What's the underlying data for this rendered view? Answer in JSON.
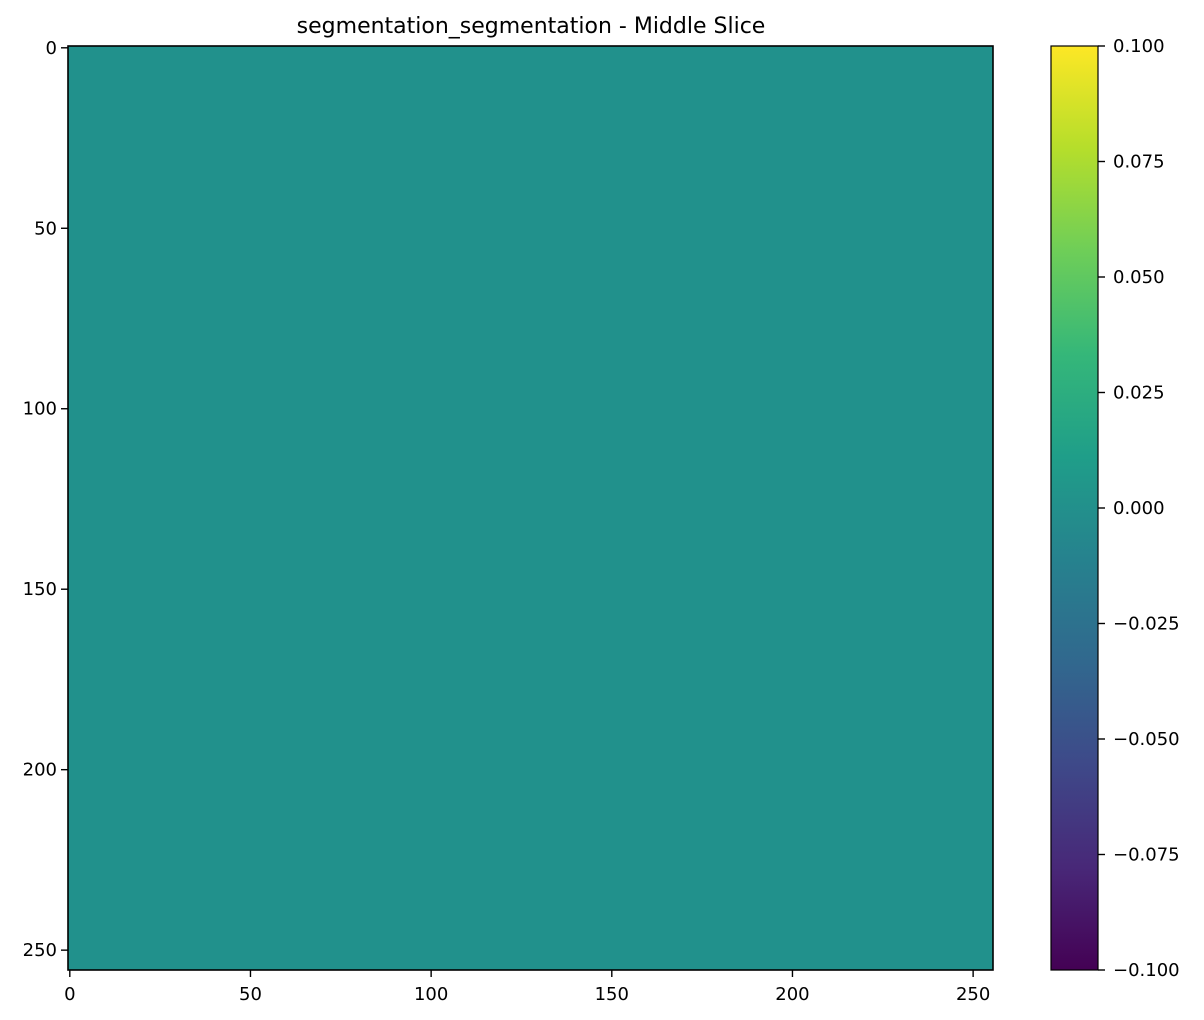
{
  "chart_data": {
    "type": "heatmap",
    "title": "segmentation_segmentation - Middle Slice",
    "xlabel": "",
    "ylabel": "",
    "x_ticks": [
      "0",
      "50",
      "100",
      "150",
      "200",
      "250"
    ],
    "y_ticks": [
      "0",
      "50",
      "100",
      "150",
      "200",
      "250"
    ],
    "x_tick_values": [
      0,
      50,
      100,
      150,
      200,
      250
    ],
    "y_tick_values": [
      0,
      50,
      100,
      150,
      200,
      250
    ],
    "xlim": [
      -0.5,
      255.5
    ],
    "ylim": [
      255.5,
      -0.5
    ],
    "image_shape": [
      256,
      256
    ],
    "uniform_value": 0.0,
    "colormap": "viridis",
    "colorbar": {
      "vmin": -0.1,
      "vmax": 0.1,
      "ticks": [
        "−0.100",
        "−0.075",
        "−0.050",
        "−0.025",
        "0.000",
        "0.025",
        "0.050",
        "0.075",
        "0.100"
      ],
      "tick_values": [
        -0.1,
        -0.075,
        -0.05,
        -0.025,
        0.0,
        0.025,
        0.05,
        0.075,
        0.1
      ]
    },
    "colors": {
      "fill": "#21918c",
      "viridis_stops": [
        "#440154",
        "#482878",
        "#3e4989",
        "#31688e",
        "#26828e",
        "#1f9e89",
        "#35b779",
        "#6ece58",
        "#b5de2b",
        "#fde725"
      ]
    }
  }
}
